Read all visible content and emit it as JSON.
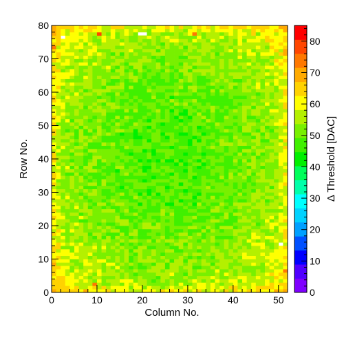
{
  "chart_data": {
    "type": "heatmap",
    "title": "",
    "xlabel": "Column No.",
    "ylabel": "Row No.",
    "zlabel": "Δ Threshold [DAC]",
    "xlim": [
      0,
      52
    ],
    "ylim": [
      0,
      80
    ],
    "zlim": [
      0,
      85
    ],
    "x_bins": 52,
    "y_bins": 80,
    "x_ticks": [
      0,
      10,
      20,
      30,
      40,
      50
    ],
    "y_ticks": [
      0,
      10,
      20,
      30,
      40,
      50,
      60,
      70,
      80
    ],
    "z_ticks": [
      0,
      10,
      20,
      30,
      40,
      50,
      60,
      70,
      80
    ],
    "x_tick_labels": [
      "0",
      "10",
      "20",
      "30",
      "40",
      "50"
    ],
    "y_tick_labels": [
      "0",
      "10",
      "20",
      "30",
      "40",
      "50",
      "60",
      "70",
      "80"
    ],
    "z_tick_labels": [
      "0",
      "10",
      "20",
      "30",
      "40",
      "50",
      "60",
      "70",
      "80"
    ],
    "center_value": 48,
    "edge_value": 62,
    "corner_value": 66,
    "noise_amplitude": 5,
    "empty_pixels": [
      {
        "col": 2,
        "row": 76
      },
      {
        "col": 19,
        "row": 77
      },
      {
        "col": 20,
        "row": 77
      },
      {
        "col": 50,
        "row": 14
      }
    ],
    "hot_pixels": [
      {
        "col": 10,
        "row": 77,
        "value": 80
      },
      {
        "col": 31,
        "row": 77,
        "value": 75
      },
      {
        "col": 9,
        "row": 2,
        "value": 73
      },
      {
        "col": 0,
        "row": 73,
        "value": 72
      },
      {
        "col": 51,
        "row": 6,
        "value": 72
      }
    ],
    "palette": [
      "#7f00ff",
      "#5000ff",
      "#0000ff",
      "#0050ff",
      "#00a0ff",
      "#00d2ff",
      "#00ffff",
      "#00ffaa",
      "#00ff5a",
      "#00f000",
      "#40f000",
      "#78f000",
      "#b4f000",
      "#ffff00",
      "#ffd200",
      "#ffaa00",
      "#ff7800",
      "#ff4600",
      "#ff0000"
    ]
  }
}
